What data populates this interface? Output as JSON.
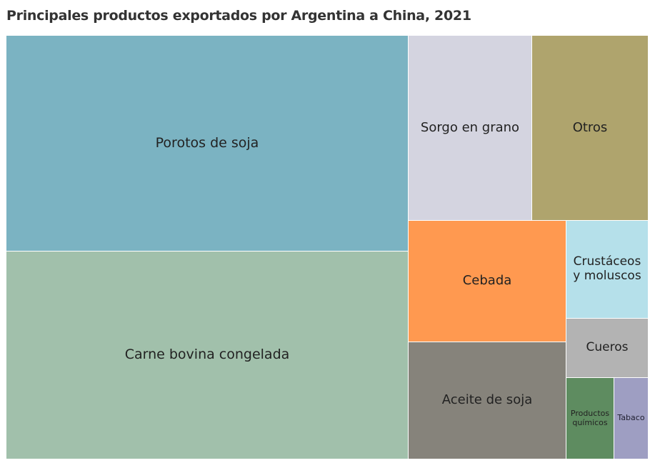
{
  "chart_data": {
    "type": "treemap",
    "title": "Principales productos exportados por Argentina a China, 2021",
    "unit": "estimated share of total (%)",
    "items": [
      {
        "label": "Porotos de soja",
        "value": 31.9,
        "color": "#7bb3c2"
      },
      {
        "label": "Carne bovina congelada",
        "value": 30.7,
        "color": "#a1c0ab"
      },
      {
        "label": "Sorgo en grano",
        "value": 8.4,
        "color": "#d4d4e0"
      },
      {
        "label": "Otros",
        "value": 7.9,
        "color": "#afa46d"
      },
      {
        "label": "Cebada",
        "value": 7.0,
        "color": "#ff9950"
      },
      {
        "label": "Aceite de soja",
        "value": 6.8,
        "color": "#86837b"
      },
      {
        "label": "Crustáceos y moluscos",
        "value": 3.0,
        "color": "#b5e0ea"
      },
      {
        "label": "Cueros",
        "value": 1.8,
        "color": "#b3b3b3"
      },
      {
        "label": "Productos químicos",
        "value": 1.4,
        "color": "#5e8c60"
      },
      {
        "label": "Tabaco",
        "value": 1.0,
        "color": "#9e9ec2"
      }
    ]
  }
}
